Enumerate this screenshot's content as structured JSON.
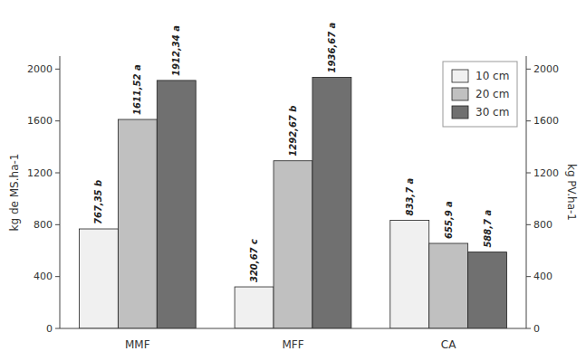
{
  "chart_data": {
    "type": "bar",
    "categories": [
      "MMF",
      "MFF",
      "CA"
    ],
    "series": [
      {
        "name": "10 cm",
        "color": "#f0f0f0",
        "values": [
          767.35,
          320.67,
          833.7
        ],
        "value_labels": [
          "767,35 b",
          "320,67 c",
          "833,7 a"
        ]
      },
      {
        "name": "20 cm",
        "color": "#c0c0c0",
        "values": [
          1611.52,
          1292.67,
          655.9
        ],
        "value_labels": [
          "1611,52 a",
          "1292,67 b",
          "655,9 a"
        ]
      },
      {
        "name": "30 cm",
        "color": "#707070",
        "values": [
          1912.34,
          1936.67,
          588.7
        ],
        "value_labels": [
          "1912,34 a",
          "1936,67 a",
          "588,7 a"
        ]
      }
    ],
    "ylabel": "kg de MS.ha-1",
    "y2label": "kg PV.ha-1",
    "ylim": [
      0,
      2100
    ],
    "yticks": [
      0,
      400,
      800,
      1200,
      1600,
      2000
    ],
    "y2lim": [
      0,
      2100
    ],
    "y2ticks": [
      0,
      400,
      800,
      1200,
      1600,
      2000
    ],
    "legend": "top-right",
    "data_labels": true,
    "grid": false
  }
}
